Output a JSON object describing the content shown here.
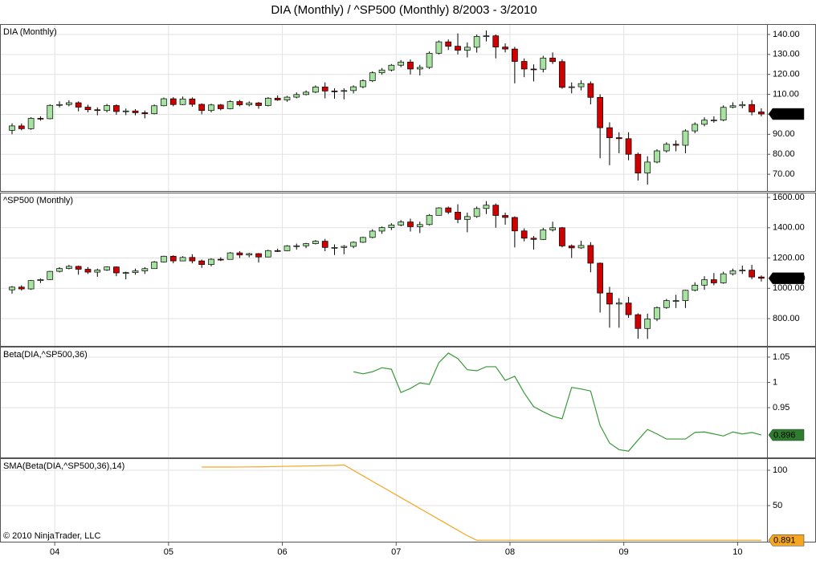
{
  "title": "DIA (Monthly) / ^SP500 (Monthly)  8/2003 - 3/2010",
  "footer": "© 2010 NinjaTrader, LLC",
  "chart_data": [
    {
      "type": "candlestick",
      "label": "DIA (Monthly)",
      "up_color": "#a6e3a0",
      "down_color": "#d00000",
      "box_color": "#000000",
      "box_text_color": "#ffffff",
      "grid": true,
      "xlim": [
        -1.27,
        79.6
      ],
      "ylim": [
        61.6,
        145.2
      ],
      "yticks": [
        {
          "value": 70,
          "label": "70.00"
        },
        {
          "value": 80,
          "label": "80.00"
        },
        {
          "value": 90,
          "label": "90.00"
        },
        {
          "value": 100,
          "label": "100.00"
        },
        {
          "value": 110,
          "label": "110.00"
        },
        {
          "value": 120,
          "label": "120.00"
        },
        {
          "value": 130,
          "label": "130.00"
        },
        {
          "value": 140,
          "label": "140.00"
        }
      ],
      "open": [
        92.0,
        94.2,
        92.8,
        98.0,
        97.8,
        104.5,
        104.9,
        105.8,
        103.6,
        102.3,
        101.9,
        104.4,
        101.4,
        101.7,
        100.8,
        100.3,
        104.3,
        107.8,
        104.9,
        107.7,
        105.0,
        101.9,
        104.7,
        102.8,
        106.4,
        104.8,
        105.7,
        104.4,
        108.1,
        107.2,
        108.6,
        109.9,
        111.1,
        113.7,
        111.7,
        111.5,
        111.9,
        113.8,
        116.8,
        120.8,
        122.2,
        124.6,
        126.2,
        122.7,
        123.5,
        130.6,
        136.3,
        134.1,
        132.1,
        133.6,
        139.0,
        139.3,
        133.7,
        132.7,
        126.5,
        122.7,
        122.6,
        128.2,
        126.4,
        113.5,
        113.8,
        115.4,
        108.5,
        93.3,
        88.3,
        87.8,
        80.0,
        70.6,
        76.1,
        81.7,
        85.0,
        84.5,
        91.7,
        95.0,
        97.1,
        97.1,
        103.5,
        104.3,
        104.9,
        101.2
      ],
      "high": [
        95.5,
        95.4,
        98.6,
        99.0,
        105.0,
        106.5,
        107.0,
        106.5,
        104.8,
        103.5,
        105.2,
        105.0,
        102.9,
        102.6,
        101.9,
        104.9,
        108.4,
        108.6,
        108.9,
        108.5,
        105.5,
        105.3,
        105.2,
        107.0,
        107.2,
        106.5,
        106.2,
        108.6,
        109.5,
        109.2,
        111.0,
        112.0,
        114.5,
        116.0,
        113.0,
        113.0,
        114.5,
        117.5,
        121.5,
        123.2,
        125.2,
        127.2,
        127.5,
        124.8,
        131.5,
        137.0,
        137.5,
        140.5,
        136.0,
        140.0,
        142.0,
        140.0,
        135.5,
        133.8,
        128.0,
        125.0,
        129.3,
        131.0,
        127.5,
        116.0,
        117.0,
        116.5,
        110.0,
        96.0,
        91.0,
        91.0,
        80.8,
        79.0,
        82.5,
        86.0,
        87.0,
        92.5,
        96.0,
        98.5,
        99.0,
        104.5,
        106.0,
        106.5,
        107.2,
        103.0
      ],
      "low": [
        90.0,
        92.0,
        92.3,
        96.8,
        97.5,
        103.5,
        104.0,
        101.5,
        101.0,
        99.5,
        101.0,
        99.8,
        99.6,
        99.5,
        98.0,
        100.0,
        104.0,
        104.0,
        104.6,
        103.8,
        100.0,
        101.0,
        102.0,
        102.5,
        104.0,
        104.0,
        102.8,
        104.0,
        106.8,
        106.3,
        108.0,
        109.5,
        110.6,
        108.0,
        107.8,
        107.5,
        110.5,
        113.0,
        116.2,
        119.8,
        121.5,
        123.6,
        120.0,
        119.5,
        122.8,
        130.0,
        132.2,
        130.0,
        128.5,
        130.9,
        136.5,
        128.0,
        131.0,
        115.5,
        118.6,
        116.5,
        121.0,
        125.2,
        112.8,
        110.5,
        112.0,
        105.0,
        78.0,
        74.5,
        80.5,
        77.0,
        66.8,
        64.8,
        75.5,
        80.8,
        81.5,
        80.5,
        90.5,
        94.0,
        95.8,
        96.5,
        103.0,
        103.0,
        99.5,
        99.0
      ],
      "close": [
        94.2,
        92.8,
        98.0,
        97.8,
        104.5,
        104.9,
        105.8,
        103.6,
        102.3,
        101.9,
        104.4,
        101.4,
        101.7,
        100.8,
        100.3,
        104.3,
        107.8,
        104.9,
        107.7,
        105.0,
        101.9,
        104.7,
        102.8,
        106.4,
        104.8,
        105.7,
        104.4,
        108.1,
        107.2,
        108.6,
        109.9,
        111.1,
        113.7,
        111.7,
        111.5,
        111.9,
        113.8,
        116.8,
        120.8,
        122.2,
        124.6,
        126.2,
        122.7,
        123.5,
        130.6,
        136.3,
        134.1,
        132.1,
        133.6,
        139.0,
        139.3,
        133.7,
        132.7,
        126.5,
        122.7,
        122.6,
        128.2,
        126.4,
        113.5,
        113.8,
        115.4,
        108.5,
        93.3,
        88.3,
        87.8,
        80.0,
        70.6,
        76.1,
        81.7,
        85.0,
        84.5,
        91.7,
        95.0,
        97.1,
        97.1,
        103.5,
        104.3,
        104.9,
        101.2,
        100.16
      ]
    },
    {
      "type": "candlestick",
      "label": "^SP500 (Monthly)",
      "up_color": "#a6e3a0",
      "down_color": "#d00000",
      "box_color": "#000000",
      "box_text_color": "#ffffff",
      "grid": true,
      "xlim": [
        -1.27,
        79.6
      ],
      "ylim": [
        620,
        1632
      ],
      "yticks": [
        {
          "value": 800,
          "label": "800.00"
        },
        {
          "value": 1000,
          "label": "1000.00"
        },
        {
          "value": 1200,
          "label": "1200.00"
        },
        {
          "value": 1400,
          "label": "1400.00"
        },
        {
          "value": 1600,
          "label": "1600.00"
        }
      ],
      "open": [
        990,
        1008,
        996,
        1051,
        1058,
        1112,
        1131,
        1145,
        1126,
        1107,
        1121,
        1141,
        1102,
        1104,
        1115,
        1130,
        1174,
        1212,
        1181,
        1204,
        1181,
        1157,
        1192,
        1191,
        1234,
        1220,
        1229,
        1207,
        1249,
        1248,
        1280,
        1281,
        1295,
        1311,
        1270,
        1270,
        1277,
        1304,
        1336,
        1378,
        1401,
        1418,
        1438,
        1407,
        1421,
        1482,
        1531,
        1503,
        1455,
        1474,
        1527,
        1549,
        1481,
        1468,
        1379,
        1331,
        1323,
        1386,
        1400,
        1280,
        1267,
        1283,
        1166,
        969,
        896,
        903,
        826,
        735,
        798,
        873,
        919,
        919,
        987,
        1021,
        1057,
        1036,
        1096,
        1115,
        1120,
        1075
      ],
      "high": [
        1015,
        1020,
        1055,
        1065,
        1115,
        1140,
        1155,
        1150,
        1140,
        1130,
        1145,
        1145,
        1110,
        1130,
        1140,
        1180,
        1215,
        1218,
        1212,
        1225,
        1190,
        1198,
        1205,
        1240,
        1245,
        1235,
        1233,
        1255,
        1262,
        1285,
        1295,
        1300,
        1318,
        1326,
        1290,
        1285,
        1310,
        1340,
        1390,
        1408,
        1430,
        1450,
        1460,
        1440,
        1490,
        1535,
        1540,
        1555,
        1500,
        1540,
        1576,
        1560,
        1500,
        1475,
        1396,
        1345,
        1400,
        1440,
        1405,
        1290,
        1315,
        1305,
        1170,
        1010,
        935,
        943,
        835,
        833,
        880,
        930,
        957,
        990,
        1040,
        1080,
        1101,
        1110,
        1130,
        1150,
        1155,
        1085
      ],
      "low": [
        965,
        985,
        990,
        1035,
        1055,
        1105,
        1125,
        1090,
        1095,
        1076,
        1115,
        1080,
        1060,
        1090,
        1095,
        1130,
        1170,
        1165,
        1180,
        1165,
        1135,
        1145,
        1180,
        1190,
        1200,
        1205,
        1170,
        1205,
        1240,
        1245,
        1255,
        1265,
        1290,
        1245,
        1220,
        1225,
        1265,
        1300,
        1330,
        1360,
        1385,
        1410,
        1375,
        1365,
        1415,
        1480,
        1490,
        1430,
        1370,
        1465,
        1490,
        1400,
        1420,
        1270,
        1310,
        1256,
        1320,
        1375,
        1270,
        1200,
        1260,
        1106,
        840,
        740,
        740,
        805,
        667,
        666,
        783,
        865,
        870,
        870,
        980,
        990,
        1020,
        1030,
        1085,
        1095,
        1060,
        1045
      ],
      "close": [
        1008,
        996,
        1051,
        1058,
        1112,
        1131,
        1145,
        1126,
        1107,
        1121,
        1141,
        1102,
        1104,
        1115,
        1130,
        1174,
        1212,
        1181,
        1204,
        1181,
        1157,
        1192,
        1191,
        1234,
        1220,
        1229,
        1207,
        1249,
        1248,
        1280,
        1281,
        1295,
        1311,
        1270,
        1270,
        1277,
        1304,
        1336,
        1378,
        1401,
        1418,
        1438,
        1407,
        1421,
        1482,
        1531,
        1503,
        1455,
        1474,
        1527,
        1549,
        1481,
        1468,
        1379,
        1331,
        1323,
        1386,
        1400,
        1280,
        1267,
        1283,
        1166,
        969,
        896,
        903,
        826,
        735,
        798,
        873,
        919,
        919,
        987,
        1021,
        1057,
        1036,
        1096,
        1115,
        1120,
        1075,
        1066.19
      ]
    },
    {
      "type": "line",
      "label": "Beta(DIA,^SP500,36)",
      "color": "#3a9a3a",
      "box_color": "#2e7d2e",
      "box_text_color": "#ffffff",
      "grid": true,
      "xlim": [
        -1.27,
        79.6
      ],
      "ylim": [
        0.8516,
        1.0706
      ],
      "yticks": [
        0.95,
        1,
        1.05
      ],
      "values": [
        null,
        null,
        null,
        null,
        null,
        null,
        null,
        null,
        null,
        null,
        null,
        null,
        null,
        null,
        null,
        null,
        null,
        null,
        null,
        null,
        null,
        null,
        null,
        null,
        null,
        null,
        null,
        null,
        null,
        null,
        null,
        null,
        null,
        null,
        null,
        null,
        1.021,
        1.017,
        1.021,
        1.029,
        1.026,
        0.98,
        0.988,
        0.999,
        0.996,
        1.039,
        1.058,
        1.047,
        1.025,
        1.023,
        1.031,
        1.031,
        1.004,
        1.012,
        0.979,
        0.952,
        0.942,
        0.933,
        0.928,
        0.99,
        0.987,
        0.983,
        0.915,
        0.88,
        0.867,
        0.864,
        0.886,
        0.907,
        0.898,
        0.888,
        0.888,
        0.888,
        0.901,
        0.902,
        0.898,
        0.894,
        0.902,
        0.898,
        0.901,
        0.896
      ]
    },
    {
      "type": "line",
      "label": "SMA(Beta(DIA,^SP500,36),14)",
      "color": "#f5a623",
      "box_color": "#f5a623",
      "box_text_color": "#000000",
      "grid": true,
      "xlim": [
        -1.27,
        79.6
      ],
      "ylim": [
        -1.1,
        117
      ],
      "yticks": [
        50,
        100
      ],
      "xticks": [
        {
          "value": 4.5,
          "label": "04"
        },
        {
          "value": 16.5,
          "label": "05"
        },
        {
          "value": 28.5,
          "label": "06"
        },
        {
          "value": 40.5,
          "label": "07"
        },
        {
          "value": 52.5,
          "label": "08"
        },
        {
          "value": 64.5,
          "label": "09"
        },
        {
          "value": 76.5,
          "label": "10"
        }
      ],
      "values": [
        null,
        null,
        null,
        null,
        null,
        null,
        null,
        null,
        null,
        null,
        null,
        null,
        null,
        null,
        null,
        null,
        null,
        null,
        null,
        null,
        104.5,
        104.5,
        104.5,
        104.5,
        104.6,
        104.7,
        104.8,
        105.0,
        105.3,
        105.6,
        105.8,
        106.0,
        106.3,
        106.6,
        106.8,
        107.5,
        99.8,
        92.1,
        84.4,
        76.7,
        69.0,
        61.3,
        53.6,
        45.9,
        38.2,
        30.5,
        22.8,
        15.1,
        7.4,
        0.9,
        0.97,
        0.97,
        0.96,
        0.96,
        0.95,
        0.95,
        0.94,
        0.94,
        0.94,
        0.93,
        0.93,
        0.93,
        0.92,
        0.92,
        0.92,
        0.91,
        0.91,
        0.91,
        0.9,
        0.9,
        0.9,
        0.9,
        0.89,
        0.89,
        0.89,
        0.89,
        0.89,
        0.89,
        0.89,
        0.891
      ]
    }
  ]
}
